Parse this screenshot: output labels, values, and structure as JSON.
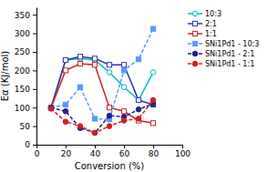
{
  "chart_data": {
    "type": "line",
    "xlabel": "Conversion (%)",
    "ylabel": "Eα (KJ/mol)",
    "x": [
      10,
      20,
      30,
      40,
      50,
      60,
      70,
      80
    ],
    "series": [
      {
        "name": "10:3",
        "color": "#00BBCC",
        "marker": "circle",
        "line_style": "solid",
        "values": [
          100,
          228,
          232,
          228,
          195,
          155,
          120,
          195
        ]
      },
      {
        "name": "2:1",
        "color": "#3333AA",
        "marker": "square",
        "line_style": "solid",
        "values": [
          100,
          228,
          237,
          232,
          215,
          215,
          120,
          108
        ]
      },
      {
        "name": "1:1",
        "color": "#CC2222",
        "marker": "square",
        "line_style": "solid",
        "values": [
          100,
          200,
          218,
          215,
          100,
          90,
          65,
          58
        ]
      },
      {
        "name": "SNi1Pd1 - 10:3",
        "color": "#5599FF",
        "marker": "square",
        "line_style": "dashed",
        "values": [
          100,
          108,
          155,
          70,
          68,
          200,
          230,
          312
        ]
      },
      {
        "name": "SNi1Pd1 - 2:1",
        "color": "#222288",
        "marker": "circle",
        "line_style": "dashed",
        "values": [
          100,
          90,
          45,
          32,
          78,
          75,
          95,
          110
        ]
      },
      {
        "name": "SNi1Pd1 - 1:1",
        "color": "#CC2222",
        "marker": "circle",
        "line_style": "dashed",
        "values": [
          97,
          62,
          50,
          32,
          50,
          65,
          70,
          120
        ]
      }
    ],
    "xlim": [
      0,
      100
    ],
    "ylim": [
      0,
      370
    ],
    "xticks": [
      0,
      20,
      40,
      60,
      80,
      100
    ],
    "yticks": [
      0,
      50,
      100,
      150,
      200,
      250,
      300,
      350
    ],
    "legend": "right",
    "grid": false
  }
}
